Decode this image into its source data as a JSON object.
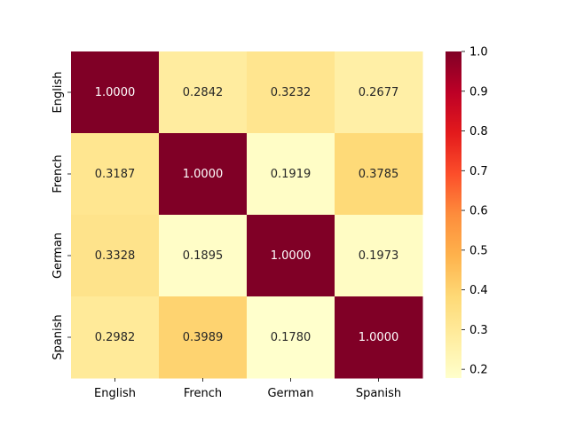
{
  "chart_data": {
    "type": "heatmap",
    "title": "",
    "xlabel": "",
    "ylabel": "",
    "x_categories": [
      "English",
      "French",
      "German",
      "Spanish"
    ],
    "y_categories": [
      "English",
      "French",
      "German",
      "Spanish"
    ],
    "values": [
      [
        1.0,
        0.2842,
        0.3232,
        0.2677
      ],
      [
        0.3187,
        1.0,
        0.1919,
        0.3785
      ],
      [
        0.3328,
        0.1895,
        1.0,
        0.1973
      ],
      [
        0.2982,
        0.3989,
        0.178,
        1.0
      ]
    ],
    "value_labels": [
      [
        "1.0000",
        "0.2842",
        "0.3232",
        "0.2677"
      ],
      [
        "0.3187",
        "1.0000",
        "0.1919",
        "0.3785"
      ],
      [
        "0.3328",
        "0.1895",
        "1.0000",
        "0.1973"
      ],
      [
        "0.2982",
        "0.3989",
        "0.1780",
        "1.0000"
      ]
    ],
    "colormap": "YlOrRd",
    "colorbar": {
      "vmin": 0.178,
      "vmax": 1.0,
      "ticks": [
        0.2,
        0.3,
        0.4,
        0.5,
        0.6,
        0.7,
        0.8,
        0.9,
        1.0
      ],
      "tick_labels": [
        "0.2",
        "0.3",
        "0.4",
        "0.5",
        "0.6",
        "0.7",
        "0.8",
        "0.9",
        "1.0"
      ]
    }
  }
}
